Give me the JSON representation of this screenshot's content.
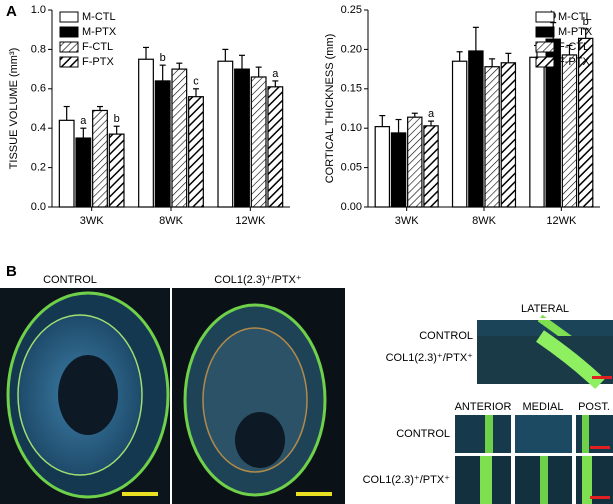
{
  "panel_a_label": "A",
  "panel_b_label": "B",
  "chart_data": [
    {
      "type": "bar",
      "ylabel": "TISSUE VOLUME (mm³)",
      "categories": [
        "3WK",
        "8WK",
        "12WK"
      ],
      "ylim": [
        0,
        1.0
      ],
      "yticks": [
        {
          "value": 0,
          "label": "0.0"
        },
        0.2,
        0.4,
        0.6,
        0.8,
        {
          "value": 1.0,
          "label": "1.0"
        }
      ],
      "legend": "upper left",
      "series": [
        {
          "name": "M-CTL",
          "color": "#ffffff",
          "pattern": "none",
          "values": [
            0.44,
            0.75,
            0.74
          ],
          "errors": [
            0.07,
            0.06,
            0.06
          ],
          "labels": [
            null,
            null,
            null
          ]
        },
        {
          "name": "M-PTX",
          "color": "#000000",
          "pattern": "none",
          "values": [
            0.35,
            0.64,
            0.7
          ],
          "errors": [
            0.05,
            0.08,
            0.07
          ],
          "labels": [
            "a",
            "b",
            null
          ]
        },
        {
          "name": "F-CTL",
          "color": "#ffffff",
          "pattern": "thin",
          "values": [
            0.49,
            0.7,
            0.66
          ],
          "errors": [
            0.02,
            0.03,
            0.05
          ],
          "labels": [
            null,
            null,
            null
          ]
        },
        {
          "name": "F-PTX",
          "color": "#ffffff",
          "pattern": "thick",
          "values": [
            0.37,
            0.56,
            0.61
          ],
          "errors": [
            0.04,
            0.04,
            0.03
          ],
          "labels": [
            "b",
            "c",
            "a"
          ]
        }
      ]
    },
    {
      "type": "bar",
      "ylabel": "CORTICAL THICKNESS (mm)",
      "categories": [
        "3WK",
        "8WK",
        "12WK"
      ],
      "ylim": [
        0,
        0.25
      ],
      "yticks": [
        {
          "value": 0,
          "label": "0.00"
        },
        0.05,
        {
          "value": 0.1,
          "label": "0.10"
        },
        0.15,
        {
          "value": 0.2,
          "label": "0.20"
        },
        0.25
      ],
      "legend": "upper right",
      "series": [
        {
          "name": "M-CTL",
          "color": "#ffffff",
          "pattern": "none",
          "values": [
            0.102,
            0.185,
            0.19
          ],
          "errors": [
            0.014,
            0.012,
            0.015
          ],
          "labels": [
            null,
            null,
            null
          ]
        },
        {
          "name": "M-PTX",
          "color": "#000000",
          "pattern": "none",
          "values": [
            0.094,
            0.198,
            0.213
          ],
          "errors": [
            0.017,
            0.03,
            0.021
          ],
          "labels": [
            null,
            null,
            "b"
          ]
        },
        {
          "name": "F-CTL",
          "color": "#ffffff",
          "pattern": "thin",
          "values": [
            0.114,
            0.178,
            0.193
          ],
          "errors": [
            0.005,
            0.01,
            0.012
          ],
          "labels": [
            null,
            null,
            null
          ]
        },
        {
          "name": "F-PTX",
          "color": "#ffffff",
          "pattern": "thick",
          "values": [
            0.103,
            0.183,
            0.214
          ],
          "errors": [
            0.006,
            0.012,
            0.012
          ],
          "labels": [
            "a",
            null,
            "b"
          ]
        }
      ]
    }
  ],
  "panel_b": {
    "large_labels": [
      "CONTROL",
      "COL1(2.3)⁺/PTX⁺"
    ],
    "lateral_title": "LATERAL",
    "lateral_rows": [
      "CONTROL",
      "COL1(2.3)⁺/PTX⁺"
    ],
    "region_titles": [
      "ANTERIOR",
      "MEDIAL",
      "POST."
    ],
    "region_rows": [
      "CONTROL",
      "COL1(2.3)⁺/PTX⁺"
    ]
  }
}
